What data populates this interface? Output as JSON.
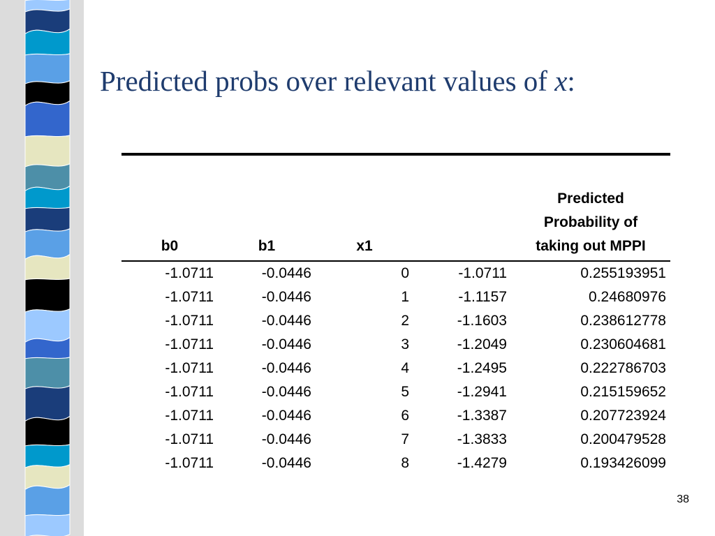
{
  "slide": {
    "title_text": "Predicted probs over relevant values of ",
    "title_var": "x",
    "title_suffix": ":",
    "page_number": "38",
    "stripe_colors": [
      "#3366cc",
      "#1a3d7a",
      "#5aa0e6",
      "#000000",
      "#e6e6c0",
      "#4d8fa8",
      "#0099cc",
      "#9cc9ff"
    ]
  },
  "table": {
    "headers": {
      "b0": "b0",
      "b1": "b1",
      "x1": "x1",
      "linear": "",
      "prob_line1": "Predicted",
      "prob_line2": "Probability of",
      "prob_line3": "taking out MPPI"
    },
    "rows": [
      [
        "-1.0711",
        "-0.0446",
        "0",
        "-1.0711",
        "0.255193951"
      ],
      [
        "-1.0711",
        "-0.0446",
        "1",
        "-1.1157",
        "0.24680976"
      ],
      [
        "-1.0711",
        "-0.0446",
        "2",
        "-1.1603",
        "0.238612778"
      ],
      [
        "-1.0711",
        "-0.0446",
        "3",
        "-1.2049",
        "0.230604681"
      ],
      [
        "-1.0711",
        "-0.0446",
        "4",
        "-1.2495",
        "0.222786703"
      ],
      [
        "-1.0711",
        "-0.0446",
        "5",
        "-1.2941",
        "0.215159652"
      ],
      [
        "-1.0711",
        "-0.0446",
        "6",
        "-1.3387",
        "0.207723924"
      ],
      [
        "-1.0711",
        "-0.0446",
        "7",
        "-1.3833",
        "0.200479528"
      ],
      [
        "-1.0711",
        "-0.0446",
        "8",
        "-1.4279",
        "0.193426099"
      ]
    ]
  }
}
